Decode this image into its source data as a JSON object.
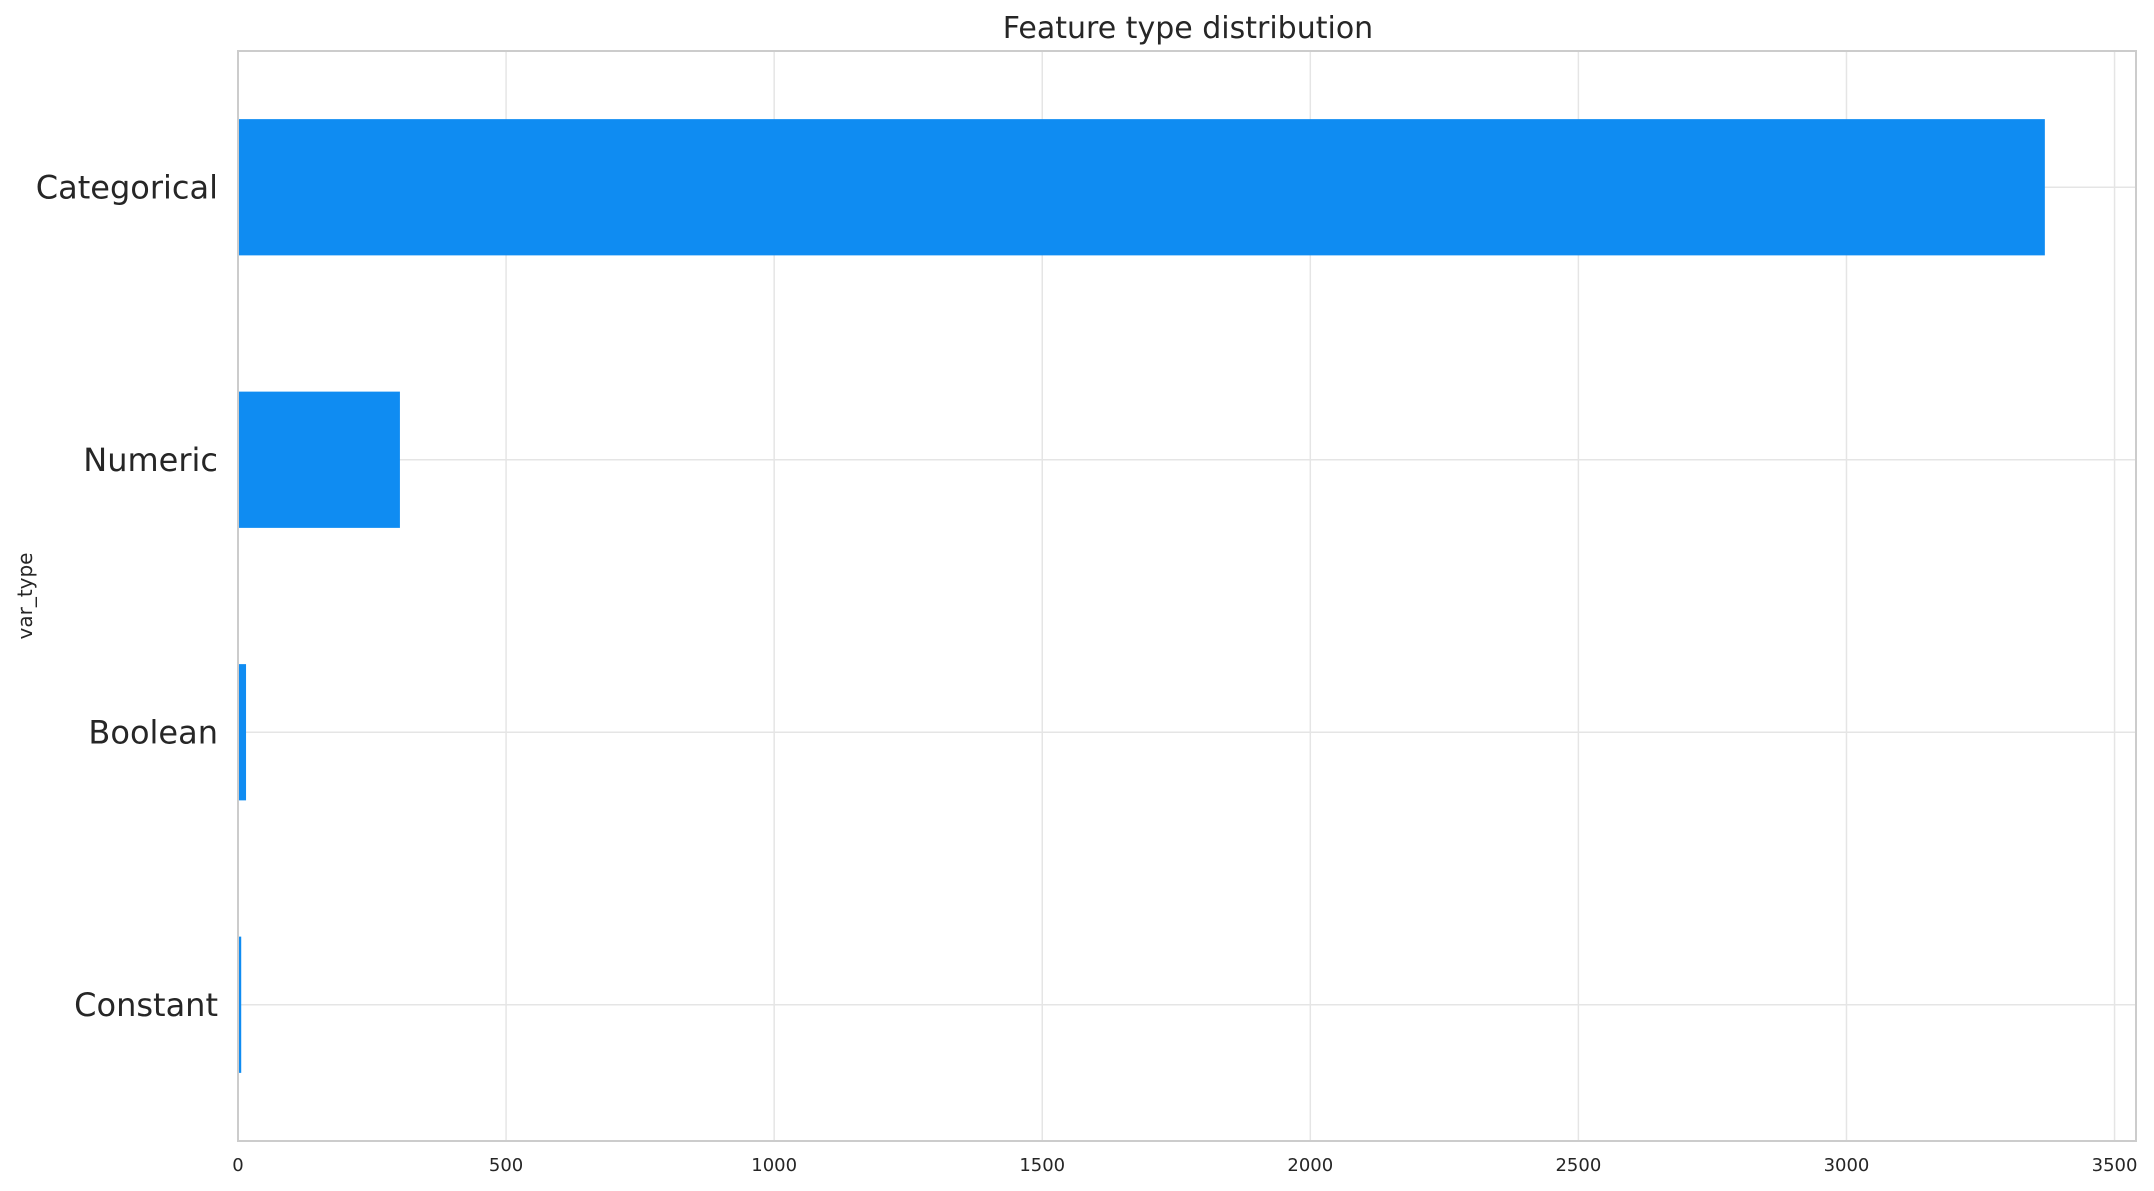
{
  "chart_data": {
    "type": "bar",
    "orientation": "horizontal",
    "title": "Feature type distribution",
    "ylabel": "var_type",
    "xlabel": "",
    "categories": [
      "Categorical",
      "Numeric",
      "Boolean",
      "Constant"
    ],
    "values": [
      3370,
      302,
      15,
      6
    ],
    "xlim": [
      0,
      3540
    ],
    "xticks": [
      0,
      500,
      1000,
      1500,
      2000,
      2500,
      3000,
      3500
    ],
    "grid": true,
    "legend": "none",
    "bar_color": "#0f8cf2"
  }
}
